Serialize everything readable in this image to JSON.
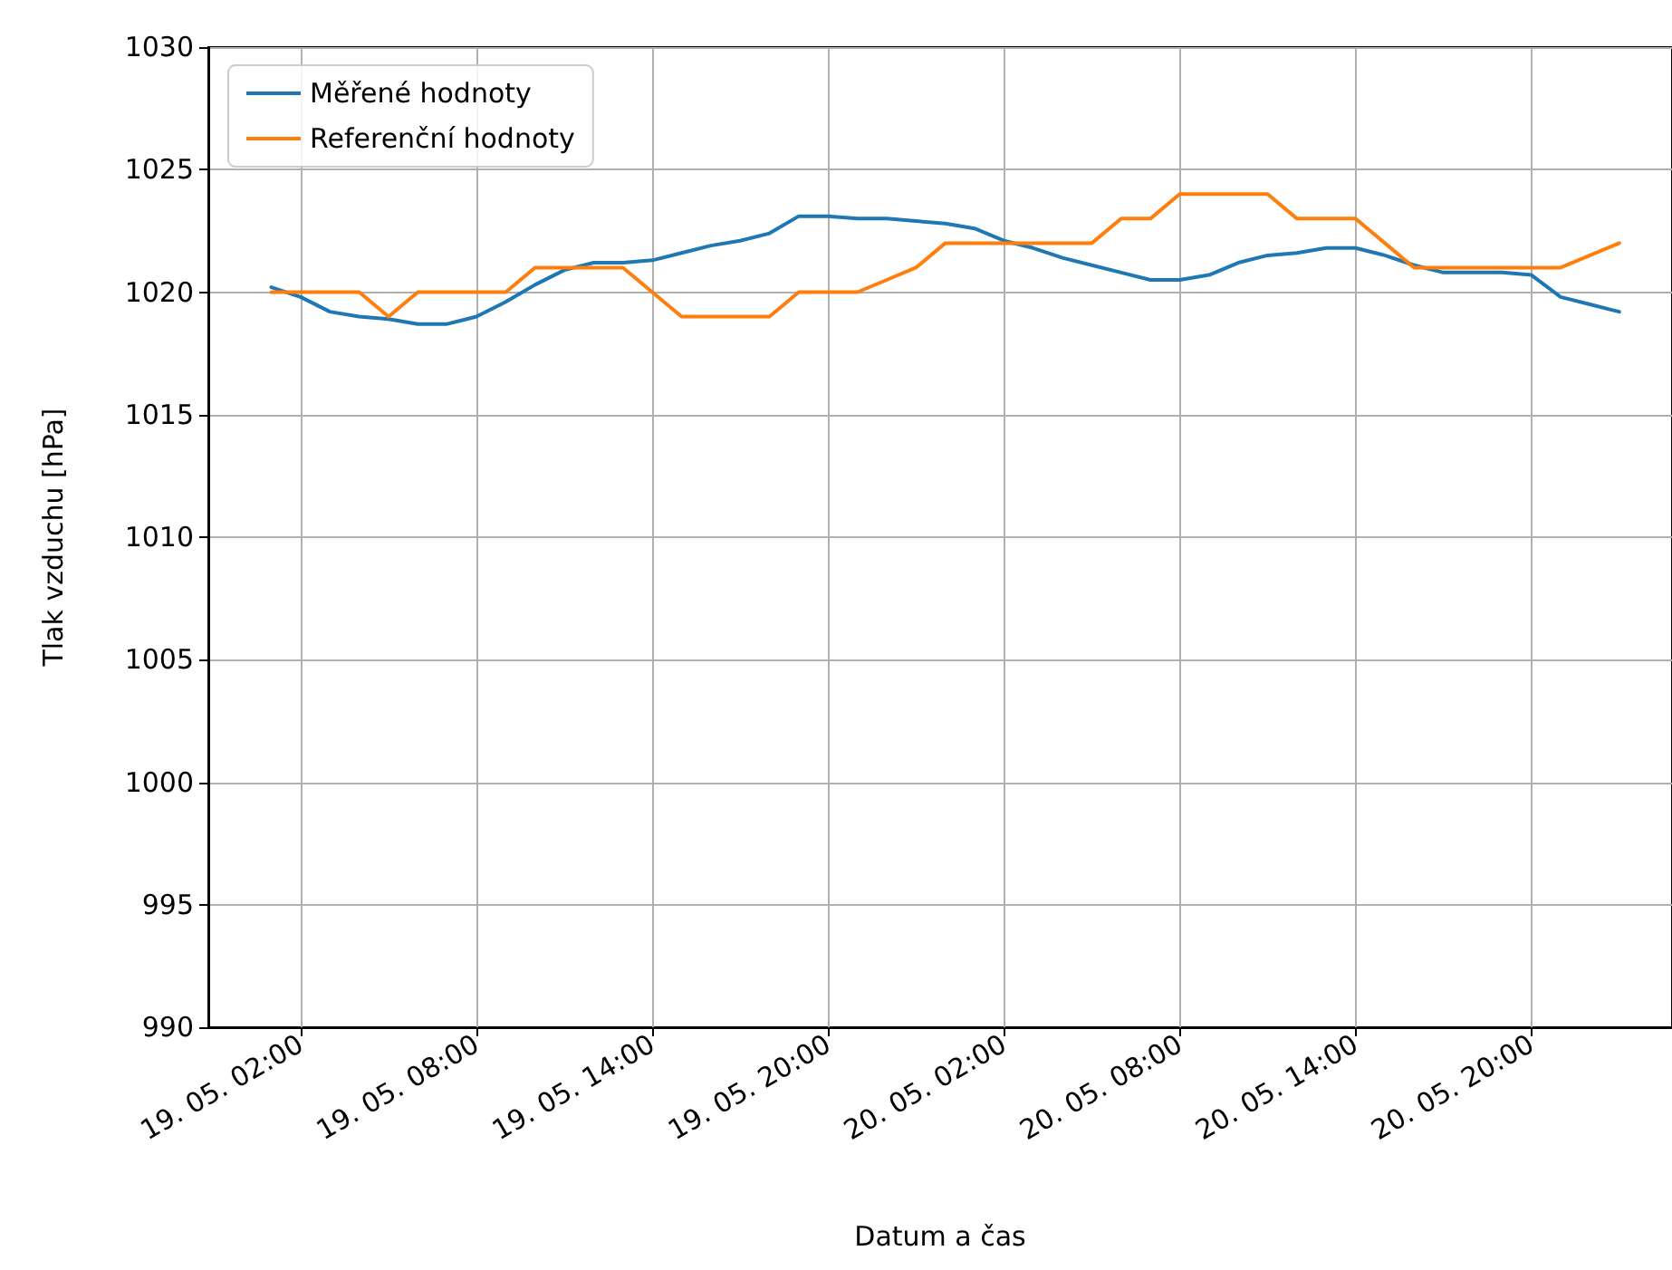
{
  "chart_data": {
    "type": "line",
    "xlabel": "Datum a čas",
    "ylabel": "Tlak vzduchu [hPa]",
    "x": [
      "--05-19T01:00",
      "--05-19T02:00",
      "--05-19T03:00",
      "--05-19T04:00",
      "--05-19T05:00",
      "--05-19T06:00",
      "--05-19T07:00",
      "--05-19T08:00",
      "--05-19T09:00",
      "--05-19T10:00",
      "--05-19T11:00",
      "--05-19T12:00",
      "--05-19T13:00",
      "--05-19T14:00",
      "--05-19T15:00",
      "--05-19T16:00",
      "--05-19T17:00",
      "--05-19T18:00",
      "--05-19T19:00",
      "--05-19T20:00",
      "--05-19T21:00",
      "--05-19T22:00",
      "--05-19T23:00",
      "--05-20T00:00",
      "--05-20T01:00",
      "--05-20T02:00",
      "--05-20T03:00",
      "--05-20T04:00",
      "--05-20T05:00",
      "--05-20T06:00",
      "--05-20T07:00",
      "--05-20T08:00",
      "--05-20T09:00",
      "--05-20T10:00",
      "--05-20T11:00",
      "--05-20T12:00",
      "--05-20T13:00",
      "--05-20T14:00",
      "--05-20T15:00",
      "--05-20T16:00",
      "--05-20T17:00",
      "--05-20T18:00",
      "--05-20T19:00",
      "--05-20T20:00",
      "--05-20T21:00",
      "--05-20T22:00",
      "--05-20T23:00"
    ],
    "series": [
      {
        "name": "Měřené hodnoty",
        "color": "#1f77b4",
        "values": [
          1020.2,
          1019.8,
          1019.2,
          1019.0,
          1018.9,
          1018.7,
          1018.7,
          1019.0,
          1019.6,
          1020.3,
          1020.9,
          1021.2,
          1021.2,
          1021.3,
          1021.6,
          1021.9,
          1022.1,
          1022.4,
          1023.1,
          1023.1,
          1023.0,
          1023.0,
          1022.9,
          1022.8,
          1022.6,
          1022.1,
          1021.8,
          1021.4,
          1021.1,
          1020.8,
          1020.5,
          1020.5,
          1020.7,
          1021.2,
          1021.5,
          1021.6,
          1021.8,
          1021.8,
          1021.5,
          1021.1,
          1020.8,
          1020.8,
          1020.8,
          1020.7,
          1019.8,
          1019.5,
          1019.2
        ]
      },
      {
        "name": "Referenční hodnoty",
        "color": "#ff7f0e",
        "values": [
          1020,
          1020,
          1020,
          1020,
          1019,
          1020,
          1020,
          1020,
          1020,
          1021,
          1021,
          1021,
          1021,
          1020,
          1019,
          1019,
          1019,
          1019,
          1020,
          1020,
          1020,
          1020.5,
          1021,
          1022,
          1022,
          1022,
          1022,
          1022,
          1022,
          1023,
          1023,
          1024,
          1024,
          1024,
          1024,
          1023,
          1023,
          1023,
          1022,
          1021,
          1021,
          1021,
          1021,
          1021,
          1021,
          1021.5,
          1022
        ]
      }
    ],
    "xlim": [
      "--05-18T22:51",
      "--05-21T00:48"
    ],
    "xticks": [
      {
        "value": "--05-19T02:00",
        "label": "19. 05. 02:00"
      },
      {
        "value": "--05-19T08:00",
        "label": "19. 05. 08:00"
      },
      {
        "value": "--05-19T14:00",
        "label": "19. 05. 14:00"
      },
      {
        "value": "--05-19T20:00",
        "label": "19. 05. 20:00"
      },
      {
        "value": "--05-20T02:00",
        "label": "20. 05. 02:00"
      },
      {
        "value": "--05-20T08:00",
        "label": "20. 05. 08:00"
      },
      {
        "value": "--05-20T14:00",
        "label": "20. 05. 14:00"
      },
      {
        "value": "--05-20T20:00",
        "label": "20. 05. 20:00"
      }
    ],
    "ylim": [
      990,
      1030
    ],
    "yticks": [
      990,
      995,
      1000,
      1005,
      1010,
      1015,
      1020,
      1025,
      1030
    ],
    "grid": true,
    "legend": "top left",
    "marker": "none",
    "line_style": "solid"
  }
}
